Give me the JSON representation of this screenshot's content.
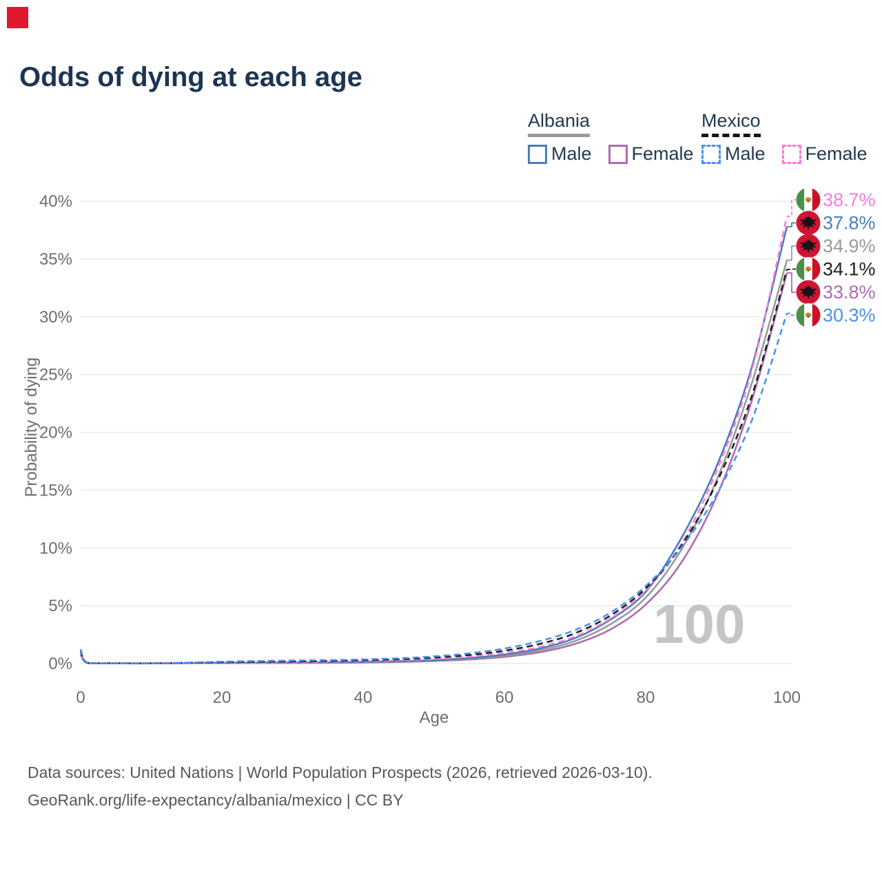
{
  "marker_color": "#e0192e",
  "header": {
    "title": "Odds of dying at each age"
  },
  "legend": {
    "albania": {
      "label": "Albania",
      "male": "Male",
      "female": "Female"
    },
    "mexico": {
      "label": "Mexico",
      "male": "Male",
      "female": "Female"
    }
  },
  "flags": {
    "albania": {
      "bg": "#d01434",
      "emblem": "#141414"
    },
    "mexico": {
      "green": "#4b9048",
      "white": "#ffffff",
      "red": "#cc1126",
      "emblem": "#c9862b",
      "emblem_dark": "#8a5a1e"
    }
  },
  "chart_data": {
    "type": "line",
    "title": "Odds of dying at each age",
    "xlabel": "Age",
    "ylabel": "Probability of dying",
    "xlim": [
      0,
      100
    ],
    "ylim": [
      0,
      40
    ],
    "x_ticks": [
      0,
      20,
      40,
      60,
      80,
      100
    ],
    "y_ticks": [
      0,
      5,
      10,
      15,
      20,
      25,
      30,
      35,
      40
    ],
    "y_tick_suffix": "%",
    "grid": "horizontal",
    "legend_position": "top-right",
    "watermark": "100",
    "ages": [
      0,
      1,
      5,
      10,
      15,
      20,
      25,
      30,
      35,
      40,
      45,
      50,
      55,
      60,
      65,
      70,
      75,
      80,
      85,
      90,
      95,
      100
    ],
    "series": [
      {
        "id": "albania-female",
        "name": "Albania Female",
        "country": "albania",
        "dash": false,
        "color": "#ad6caf",
        "end_label": "33.8%",
        "values": [
          0.8,
          0.04,
          0.015,
          0.015,
          0.03,
          0.04,
          0.045,
          0.05,
          0.06,
          0.09,
          0.14,
          0.22,
          0.35,
          0.58,
          0.98,
          1.7,
          2.95,
          5.1,
          8.7,
          14.4,
          22.7,
          33.8
        ]
      },
      {
        "id": "albania-total",
        "name": "Albania",
        "country": "albania",
        "dash": false,
        "color": "#9a9a9a",
        "end_label": "34.9%",
        "values": [
          0.88,
          0.045,
          0.018,
          0.018,
          0.04,
          0.06,
          0.07,
          0.08,
          0.09,
          0.12,
          0.17,
          0.26,
          0.42,
          0.68,
          1.14,
          1.95,
          3.4,
          5.7,
          9.8,
          15.8,
          24.2,
          34.9
        ]
      },
      {
        "id": "albania-male",
        "name": "Albania Male",
        "country": "albania",
        "dash": false,
        "color": "#4a7ebb",
        "end_label": "37.8%",
        "values": [
          0.95,
          0.05,
          0.02,
          0.02,
          0.05,
          0.08,
          0.09,
          0.1,
          0.12,
          0.14,
          0.2,
          0.3,
          0.48,
          0.78,
          1.3,
          2.2,
          3.8,
          6.2,
          10.8,
          17.0,
          25.6,
          37.8
        ]
      },
      {
        "id": "mexico-female",
        "name": "Mexico Female",
        "country": "mexico",
        "dash": true,
        "color": "#f97ce1",
        "end_label": "38.7%",
        "values": [
          1.0,
          0.05,
          0.02,
          0.02,
          0.04,
          0.06,
          0.08,
          0.1,
          0.15,
          0.2,
          0.28,
          0.4,
          0.6,
          0.92,
          1.45,
          2.35,
          3.9,
          6.3,
          10.3,
          16.6,
          25.3,
          38.7
        ]
      },
      {
        "id": "mexico-total",
        "name": "Mexico",
        "country": "mexico",
        "dash": true,
        "color": "#1f1f1f",
        "end_label": "34.1%",
        "values": [
          1.13,
          0.055,
          0.025,
          0.025,
          0.06,
          0.11,
          0.15,
          0.18,
          0.22,
          0.28,
          0.37,
          0.51,
          0.74,
          1.11,
          1.7,
          2.62,
          4.15,
          6.5,
          10.15,
          15.6,
          23.1,
          34.1
        ]
      },
      {
        "id": "mexico-male",
        "name": "Mexico Male",
        "country": "mexico",
        "dash": true,
        "color": "#4a90f2",
        "end_label": "30.3%",
        "values": [
          1.25,
          0.06,
          0.03,
          0.03,
          0.08,
          0.16,
          0.22,
          0.26,
          0.3,
          0.36,
          0.46,
          0.62,
          0.88,
          1.3,
          1.95,
          2.9,
          4.4,
          6.7,
          10.0,
          14.6,
          21.0,
          30.3
        ]
      }
    ]
  },
  "footer": {
    "line1": "Data sources: United Nations | World Population Prospects (2026, retrieved 2026-03-10).",
    "line2": "GeoRank.org/life-expectancy/albania/mexico | CC BY"
  }
}
